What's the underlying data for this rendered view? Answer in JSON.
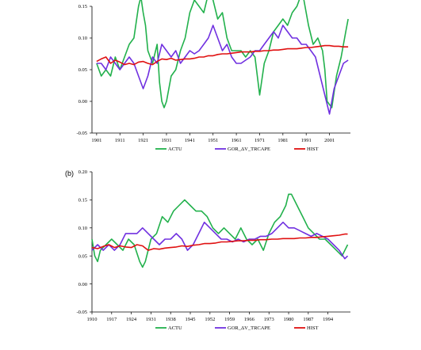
{
  "chart_data": [
    {
      "type": "line",
      "panel_label": "",
      "xlabel": "",
      "ylabel": "",
      "xlim": [
        1899,
        2010
      ],
      "ylim": [
        -0.05,
        0.15
      ],
      "xticks": [
        "1901",
        "1911",
        "1921",
        "1931",
        "1941",
        "1951",
        "1961",
        "1971",
        "1981",
        "1991",
        "2001"
      ],
      "yticks": [
        "-0.05",
        "0.00",
        "0.05",
        "0.10",
        "0.15"
      ],
      "legend_position": "bottom",
      "series": [
        {
          "name": "ACTU",
          "color": "#22b14c",
          "x": [
            1901,
            1903,
            1905,
            1907,
            1909,
            1911,
            1913,
            1915,
            1917,
            1919,
            1920,
            1921,
            1922,
            1923,
            1925,
            1927,
            1928,
            1929,
            1930,
            1931,
            1933,
            1935,
            1937,
            1939,
            1941,
            1943,
            1945,
            1947,
            1949,
            1950,
            1951,
            1953,
            1955,
            1957,
            1959,
            1961,
            1963,
            1965,
            1967,
            1969,
            1971,
            1973,
            1975,
            1977,
            1979,
            1981,
            1983,
            1985,
            1987,
            1989,
            1990,
            1992,
            1994,
            1996,
            1998,
            1999,
            2000,
            2002,
            2004,
            2006,
            2008,
            2009
          ],
          "y": [
            0.06,
            0.04,
            0.05,
            0.04,
            0.07,
            0.05,
            0.07,
            0.09,
            0.1,
            0.15,
            0.165,
            0.14,
            0.12,
            0.08,
            0.06,
            0.09,
            0.03,
            0.0,
            -0.01,
            0.0,
            0.04,
            0.05,
            0.08,
            0.1,
            0.14,
            0.16,
            0.15,
            0.14,
            0.17,
            0.165,
            0.16,
            0.13,
            0.14,
            0.1,
            0.08,
            0.08,
            0.08,
            0.07,
            0.08,
            0.07,
            0.01,
            0.06,
            0.08,
            0.11,
            0.12,
            0.13,
            0.12,
            0.14,
            0.15,
            0.17,
            0.16,
            0.12,
            0.09,
            0.1,
            0.08,
            0.05,
            0.0,
            -0.01,
            0.04,
            0.07,
            0.11,
            0.13
          ]
        },
        {
          "name": "GOR_ΔV_TRCAPE",
          "color": "#7030e0",
          "x": [
            1901,
            1903,
            1905,
            1907,
            1909,
            1911,
            1913,
            1915,
            1917,
            1919,
            1921,
            1923,
            1925,
            1927,
            1929,
            1931,
            1933,
            1935,
            1937,
            1939,
            1941,
            1943,
            1945,
            1947,
            1949,
            1951,
            1953,
            1955,
            1957,
            1959,
            1961,
            1963,
            1965,
            1967,
            1969,
            1971,
            1973,
            1975,
            1977,
            1979,
            1981,
            1983,
            1985,
            1987,
            1989,
            1991,
            1993,
            1995,
            1997,
            1999,
            2001,
            2003,
            2005,
            2007,
            2009
          ],
          "y": [
            0.06,
            0.06,
            0.05,
            0.07,
            0.06,
            0.05,
            0.06,
            0.07,
            0.06,
            0.04,
            0.02,
            0.04,
            0.07,
            0.06,
            0.09,
            0.08,
            0.07,
            0.08,
            0.06,
            0.07,
            0.08,
            0.075,
            0.08,
            0.09,
            0.1,
            0.12,
            0.1,
            0.08,
            0.09,
            0.07,
            0.06,
            0.06,
            0.065,
            0.07,
            0.08,
            0.08,
            0.09,
            0.1,
            0.11,
            0.1,
            0.12,
            0.11,
            0.1,
            0.1,
            0.09,
            0.09,
            0.08,
            0.07,
            0.04,
            0.01,
            -0.02,
            0.02,
            0.04,
            0.06,
            0.065
          ]
        },
        {
          "name": "HIST",
          "color": "#e01010",
          "x": [
            1901,
            1903,
            1905,
            1907,
            1909,
            1911,
            1913,
            1915,
            1917,
            1919,
            1921,
            1923,
            1925,
            1927,
            1929,
            1931,
            1933,
            1935,
            1937,
            1939,
            1941,
            1943,
            1945,
            1947,
            1949,
            1951,
            1953,
            1955,
            1957,
            1959,
            1961,
            1963,
            1965,
            1967,
            1969,
            1971,
            1973,
            1975,
            1977,
            1979,
            1981,
            1983,
            1985,
            1987,
            1989,
            1991,
            1993,
            1995,
            1997,
            1999,
            2001,
            2003,
            2005,
            2007,
            2009
          ],
          "y": [
            0.063,
            0.067,
            0.07,
            0.06,
            0.065,
            0.062,
            0.058,
            0.06,
            0.058,
            0.062,
            0.063,
            0.06,
            0.058,
            0.063,
            0.067,
            0.066,
            0.068,
            0.065,
            0.066,
            0.067,
            0.067,
            0.068,
            0.07,
            0.07,
            0.072,
            0.072,
            0.074,
            0.075,
            0.075,
            0.076,
            0.077,
            0.078,
            0.078,
            0.078,
            0.079,
            0.079,
            0.08,
            0.08,
            0.081,
            0.081,
            0.082,
            0.083,
            0.083,
            0.083,
            0.084,
            0.085,
            0.085,
            0.086,
            0.087,
            0.088,
            0.088,
            0.087,
            0.087,
            0.086,
            0.086
          ]
        }
      ]
    },
    {
      "type": "line",
      "panel_label": "(b)",
      "xlabel": "",
      "ylabel": "",
      "xlim": [
        1910,
        2002
      ],
      "ylim": [
        -0.05,
        0.2
      ],
      "xticks": [
        "1910",
        "1917",
        "1924",
        "1931",
        "1938",
        "1945",
        "1952",
        "1959",
        "1966",
        "1973",
        "1980",
        "1987",
        "1994"
      ],
      "yticks": [
        "-0.05",
        "0.00",
        "0.05",
        "0.10",
        "0.15",
        "0.20"
      ],
      "legend_position": "bottom",
      "series": [
        {
          "name": "ACTU",
          "color": "#22b14c",
          "x": [
            1910,
            1911,
            1912,
            1913,
            1915,
            1917,
            1919,
            1921,
            1923,
            1925,
            1927,
            1928,
            1929,
            1931,
            1933,
            1935,
            1937,
            1939,
            1941,
            1943,
            1945,
            1947,
            1949,
            1951,
            1953,
            1955,
            1957,
            1959,
            1961,
            1963,
            1965,
            1967,
            1969,
            1971,
            1973,
            1975,
            1977,
            1979,
            1980,
            1981,
            1983,
            1985,
            1987,
            1989,
            1991,
            1993,
            1995,
            1997,
            1999,
            2001
          ],
          "y": [
            0.08,
            0.05,
            0.04,
            0.06,
            0.07,
            0.08,
            0.07,
            0.06,
            0.08,
            0.07,
            0.04,
            0.03,
            0.04,
            0.08,
            0.09,
            0.12,
            0.11,
            0.13,
            0.14,
            0.15,
            0.14,
            0.13,
            0.13,
            0.12,
            0.1,
            0.09,
            0.1,
            0.09,
            0.08,
            0.1,
            0.08,
            0.07,
            0.08,
            0.06,
            0.09,
            0.11,
            0.12,
            0.14,
            0.16,
            0.16,
            0.14,
            0.12,
            0.1,
            0.09,
            0.08,
            0.08,
            0.07,
            0.06,
            0.05,
            0.07
          ]
        },
        {
          "name": "GOR_ΔV_TRCAPE",
          "color": "#7030e0",
          "x": [
            1910,
            1912,
            1914,
            1916,
            1918,
            1920,
            1922,
            1924,
            1926,
            1928,
            1930,
            1932,
            1934,
            1936,
            1938,
            1940,
            1942,
            1944,
            1946,
            1948,
            1950,
            1952,
            1954,
            1956,
            1958,
            1960,
            1962,
            1964,
            1966,
            1968,
            1970,
            1972,
            1974,
            1976,
            1978,
            1980,
            1982,
            1984,
            1986,
            1988,
            1990,
            1992,
            1994,
            1996,
            1998,
            2000,
            2001
          ],
          "y": [
            0.06,
            0.07,
            0.06,
            0.07,
            0.06,
            0.07,
            0.09,
            0.09,
            0.09,
            0.1,
            0.09,
            0.08,
            0.07,
            0.08,
            0.08,
            0.09,
            0.08,
            0.06,
            0.07,
            0.09,
            0.11,
            0.1,
            0.09,
            0.08,
            0.08,
            0.075,
            0.08,
            0.075,
            0.08,
            0.08,
            0.085,
            0.085,
            0.09,
            0.1,
            0.11,
            0.1,
            0.1,
            0.095,
            0.09,
            0.085,
            0.09,
            0.085,
            0.08,
            0.07,
            0.06,
            0.045,
            0.05
          ]
        },
        {
          "name": "HIST",
          "color": "#e01010",
          "x": [
            1910,
            1912,
            1914,
            1916,
            1918,
            1920,
            1922,
            1924,
            1926,
            1928,
            1930,
            1932,
            1934,
            1936,
            1938,
            1940,
            1942,
            1944,
            1946,
            1948,
            1950,
            1952,
            1954,
            1956,
            1958,
            1960,
            1962,
            1964,
            1966,
            1968,
            1970,
            1972,
            1974,
            1976,
            1978,
            1980,
            1982,
            1984,
            1986,
            1988,
            1990,
            1992,
            1994,
            1996,
            1998,
            2000,
            2001
          ],
          "y": [
            0.065,
            0.063,
            0.067,
            0.07,
            0.065,
            0.068,
            0.066,
            0.065,
            0.07,
            0.068,
            0.06,
            0.063,
            0.062,
            0.064,
            0.065,
            0.066,
            0.068,
            0.067,
            0.069,
            0.07,
            0.072,
            0.072,
            0.073,
            0.075,
            0.075,
            0.076,
            0.077,
            0.077,
            0.078,
            0.078,
            0.079,
            0.079,
            0.08,
            0.08,
            0.081,
            0.081,
            0.081,
            0.082,
            0.082,
            0.083,
            0.083,
            0.084,
            0.085,
            0.086,
            0.087,
            0.089,
            0.089
          ]
        }
      ]
    }
  ]
}
